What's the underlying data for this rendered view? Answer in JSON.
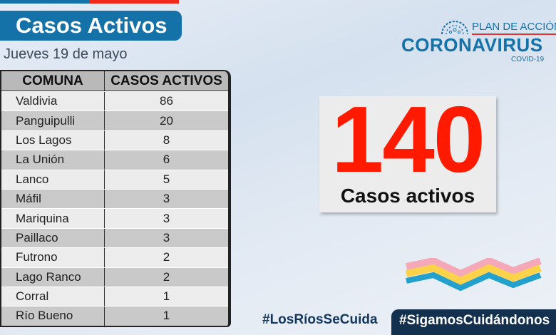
{
  "header": {
    "title": "Casos Activos",
    "date": "Jueves 19 de mayo"
  },
  "logo": {
    "plan": "PLAN DE ACCIÓN",
    "main": "CORONAVIRUS",
    "sub": "COVID-19"
  },
  "table": {
    "headers": [
      "COMUNA",
      "CASOS ACTIVOS"
    ],
    "rows": [
      {
        "comuna": "Valdivia",
        "casos": "86"
      },
      {
        "comuna": "Panguipulli",
        "casos": "20"
      },
      {
        "comuna": "Los Lagos",
        "casos": "8"
      },
      {
        "comuna": "La Unión",
        "casos": "6"
      },
      {
        "comuna": "Lanco",
        "casos": "5"
      },
      {
        "comuna": "Máfil",
        "casos": "3"
      },
      {
        "comuna": "Mariquina",
        "casos": "3"
      },
      {
        "comuna": "Paillaco",
        "casos": "3"
      },
      {
        "comuna": "Futrono",
        "casos": "2"
      },
      {
        "comuna": "Lago Ranco",
        "casos": "2"
      },
      {
        "comuna": "Corral",
        "casos": "1"
      },
      {
        "comuna": "Río Bueno",
        "casos": "1"
      }
    ]
  },
  "total": {
    "value": "140",
    "label": "Casos activos"
  },
  "footer": {
    "tag1": "#LosRíosSeCuida",
    "tag2": "#SigamosCuidándonos"
  },
  "colors": {
    "blue": "#1572a9",
    "red": "#ff1a00",
    "navy": "#13304f"
  }
}
